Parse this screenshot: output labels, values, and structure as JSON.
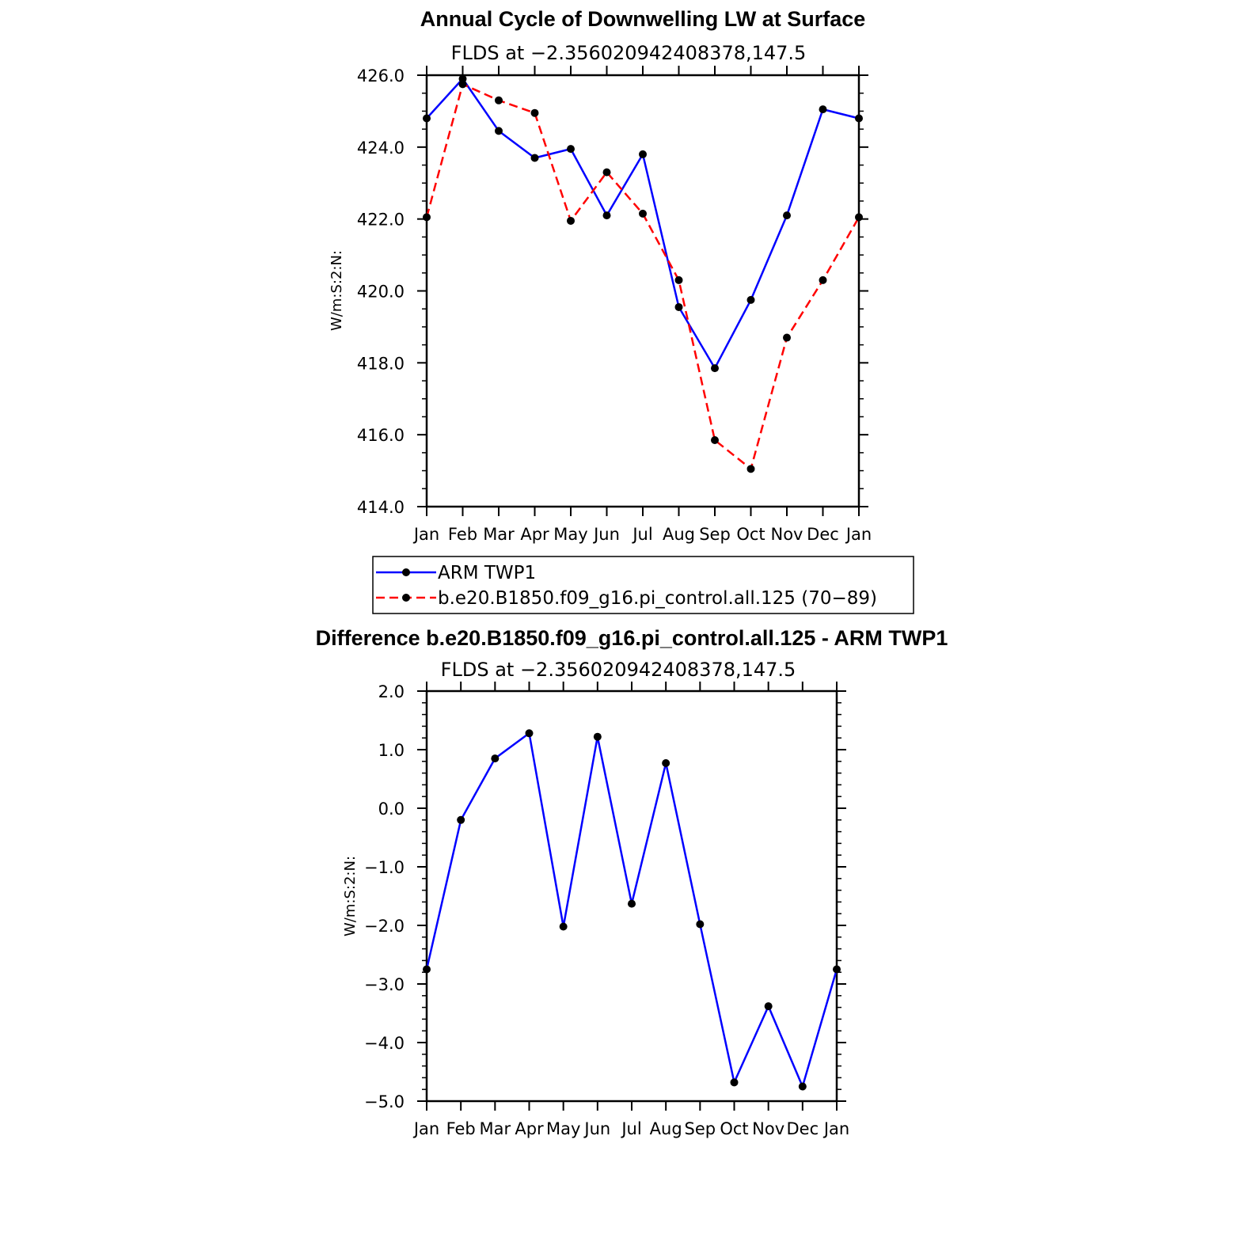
{
  "chart_data": [
    {
      "type": "line",
      "title": "Annual Cycle of Downwelling LW at Surface",
      "subtitle": "FLDS at −2.356020942408378,147.5",
      "ylabel": "W/m:S:2:N:",
      "xlabel": "",
      "categories": [
        "Jan",
        "Feb",
        "Mar",
        "Apr",
        "May",
        "Jun",
        "Jul",
        "Aug",
        "Sep",
        "Oct",
        "Nov",
        "Dec",
        "Jan"
      ],
      "ylim": [
        414.0,
        426.0
      ],
      "yticks": [
        "414.0",
        "416.0",
        "418.0",
        "420.0",
        "422.0",
        "424.0",
        "426.0"
      ],
      "series": [
        {
          "name": "ARM TWP1",
          "color": "#0000ff",
          "dash": "solid",
          "marker": "filled-circle",
          "values": [
            424.8,
            425.9,
            424.45,
            423.7,
            423.95,
            422.1,
            423.8,
            419.55,
            417.85,
            419.75,
            422.1,
            425.05,
            424.8
          ]
        },
        {
          "name": "b.e20.B1850.f09_g16.pi_control.all.125 (70−89)",
          "color": "#ff0000",
          "dash": "dashed",
          "marker": "filled-circle",
          "values": [
            422.05,
            425.75,
            425.3,
            424.95,
            421.95,
            423.3,
            422.15,
            420.3,
            415.85,
            415.05,
            418.7,
            420.3,
            422.05
          ]
        }
      ],
      "legend_position": "bottom"
    },
    {
      "type": "line",
      "title": "Difference b.e20.B1850.f09_g16.pi_control.all.125 - ARM TWP1",
      "subtitle": "FLDS at −2.356020942408378,147.5",
      "ylabel": "W/m:S:2:N:",
      "xlabel": "",
      "categories": [
        "Jan",
        "Feb",
        "Mar",
        "Apr",
        "May",
        "Jun",
        "Jul",
        "Aug",
        "Sep",
        "Oct",
        "Nov",
        "Dec",
        "Jan"
      ],
      "ylim": [
        -5.0,
        2.0
      ],
      "yticks": [
        "−5.0",
        "−4.0",
        "−3.0",
        "−2.0",
        "−1.0",
        "0.0",
        "1.0",
        "2.0"
      ],
      "series": [
        {
          "color": "#0000ff",
          "dash": "solid",
          "marker": "filled-circle",
          "values": [
            -2.75,
            -0.2,
            0.85,
            1.28,
            -2.02,
            1.22,
            -1.63,
            0.77,
            -1.98,
            -4.68,
            -3.38,
            -4.75,
            -2.75
          ]
        }
      ]
    }
  ]
}
